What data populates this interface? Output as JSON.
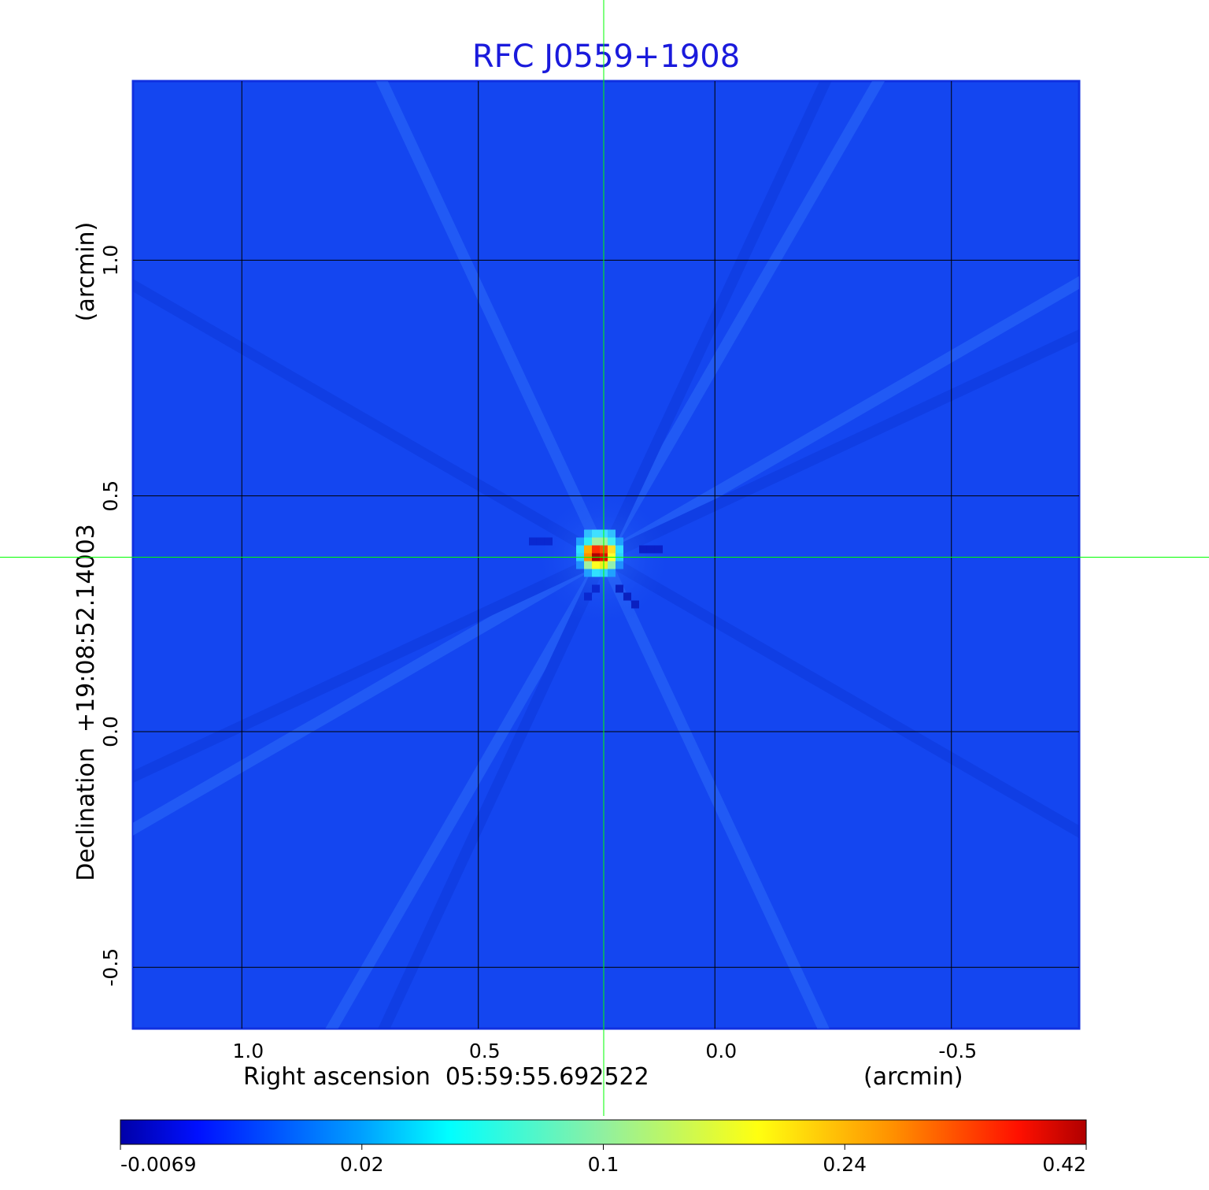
{
  "chart_data": {
    "type": "heatmap",
    "title": "RFC J0559+1908",
    "xlabel": "Right ascension  05:59:55.692522",
    "xunit": "(arcmin)",
    "ylabel": "Declination  +19:08:52.14003",
    "yunit": "(arcmin)",
    "x_ticks": [
      {
        "value": 1.0,
        "label": "1.0"
      },
      {
        "value": 0.5,
        "label": "0.5"
      },
      {
        "value": 0.0,
        "label": "0.0"
      },
      {
        "value": -0.5,
        "label": "-0.5"
      }
    ],
    "y_ticks": [
      {
        "value": 1.0,
        "label": "1.0"
      },
      {
        "value": 0.5,
        "label": "0.5"
      },
      {
        "value": 0.0,
        "label": "0.0"
      },
      {
        "value": -0.5,
        "label": "-0.5"
      }
    ],
    "xlim": [
      1.23,
      -0.77
    ],
    "ylim": [
      -0.63,
      1.38
    ],
    "grid": true,
    "colormap": "jet",
    "colorbar": {
      "position": "bottom",
      "tick_labels": [
        "-0.0069",
        "0.02",
        "0.1",
        "0.24",
        "0.42"
      ],
      "range": [
        -0.0069,
        0.42
      ]
    },
    "peak": {
      "x": 0.235,
      "y": 0.37,
      "value": 0.42
    },
    "crosshair": {
      "x": 0.235,
      "y": 0.37,
      "color": "#00ff00"
    },
    "colors": {
      "background_field": "#1446f0",
      "title": "#1a1adc",
      "grid": "#000000"
    }
  }
}
